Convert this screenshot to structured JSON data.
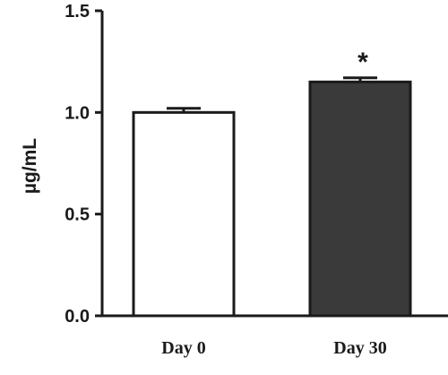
{
  "chart_data": {
    "type": "bar",
    "categories": [
      "Day 0",
      "Day 30"
    ],
    "values": [
      1.0,
      1.15
    ],
    "errors": [
      0.02,
      0.02
    ],
    "ylabel": "µg/mL",
    "xlabel": "",
    "ylim": [
      0,
      1.5
    ],
    "yticks": [
      0.0,
      0.5,
      1.0,
      1.5
    ],
    "ytick_labels": [
      "0.0",
      "0.5",
      "1.0",
      "1.5"
    ],
    "bar_fills": [
      "#ffffff",
      "#3a3a3a"
    ],
    "annotations": [
      {
        "category": "Day 30",
        "text": "*"
      }
    ],
    "grid": false,
    "legend": "none"
  }
}
